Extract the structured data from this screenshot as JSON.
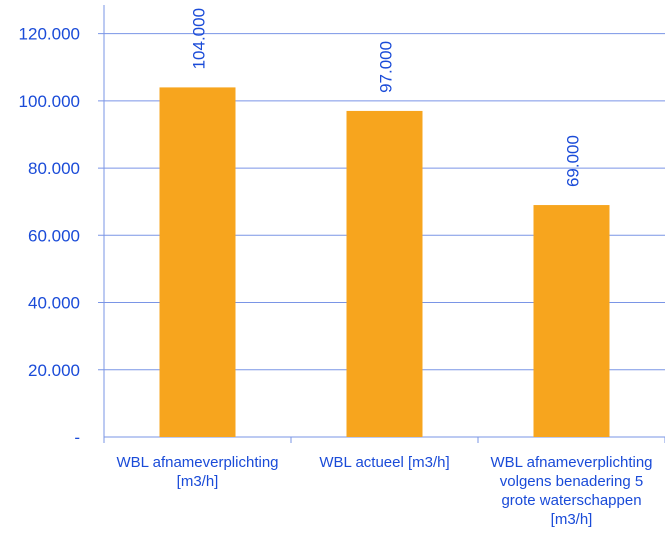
{
  "chart_data": {
    "type": "bar",
    "categories": [
      [
        "WBL afnameverplichting",
        "[m3/h]"
      ],
      [
        "WBL actueel [m3/h]"
      ],
      [
        "WBL afnameverplichting",
        "volgens benadering 5",
        "grote waterschappen",
        "[m3/h]"
      ]
    ],
    "values": [
      104000,
      97000,
      69000
    ],
    "value_labels": [
      "104.000",
      "97.000",
      "69.000"
    ],
    "ylim": [
      0,
      130000
    ],
    "yticks": [
      0,
      20000,
      40000,
      60000,
      80000,
      100000,
      120000
    ],
    "ytick_labels": [
      "-",
      "20.000",
      "40.000",
      "60.000",
      "80.000",
      "100.000",
      "120.000"
    ],
    "grid": true,
    "colors": {
      "bar": "#F7A51E",
      "grid": "#7a95e6",
      "axis": "#7a95e6",
      "text": "#1a4bd8"
    }
  }
}
